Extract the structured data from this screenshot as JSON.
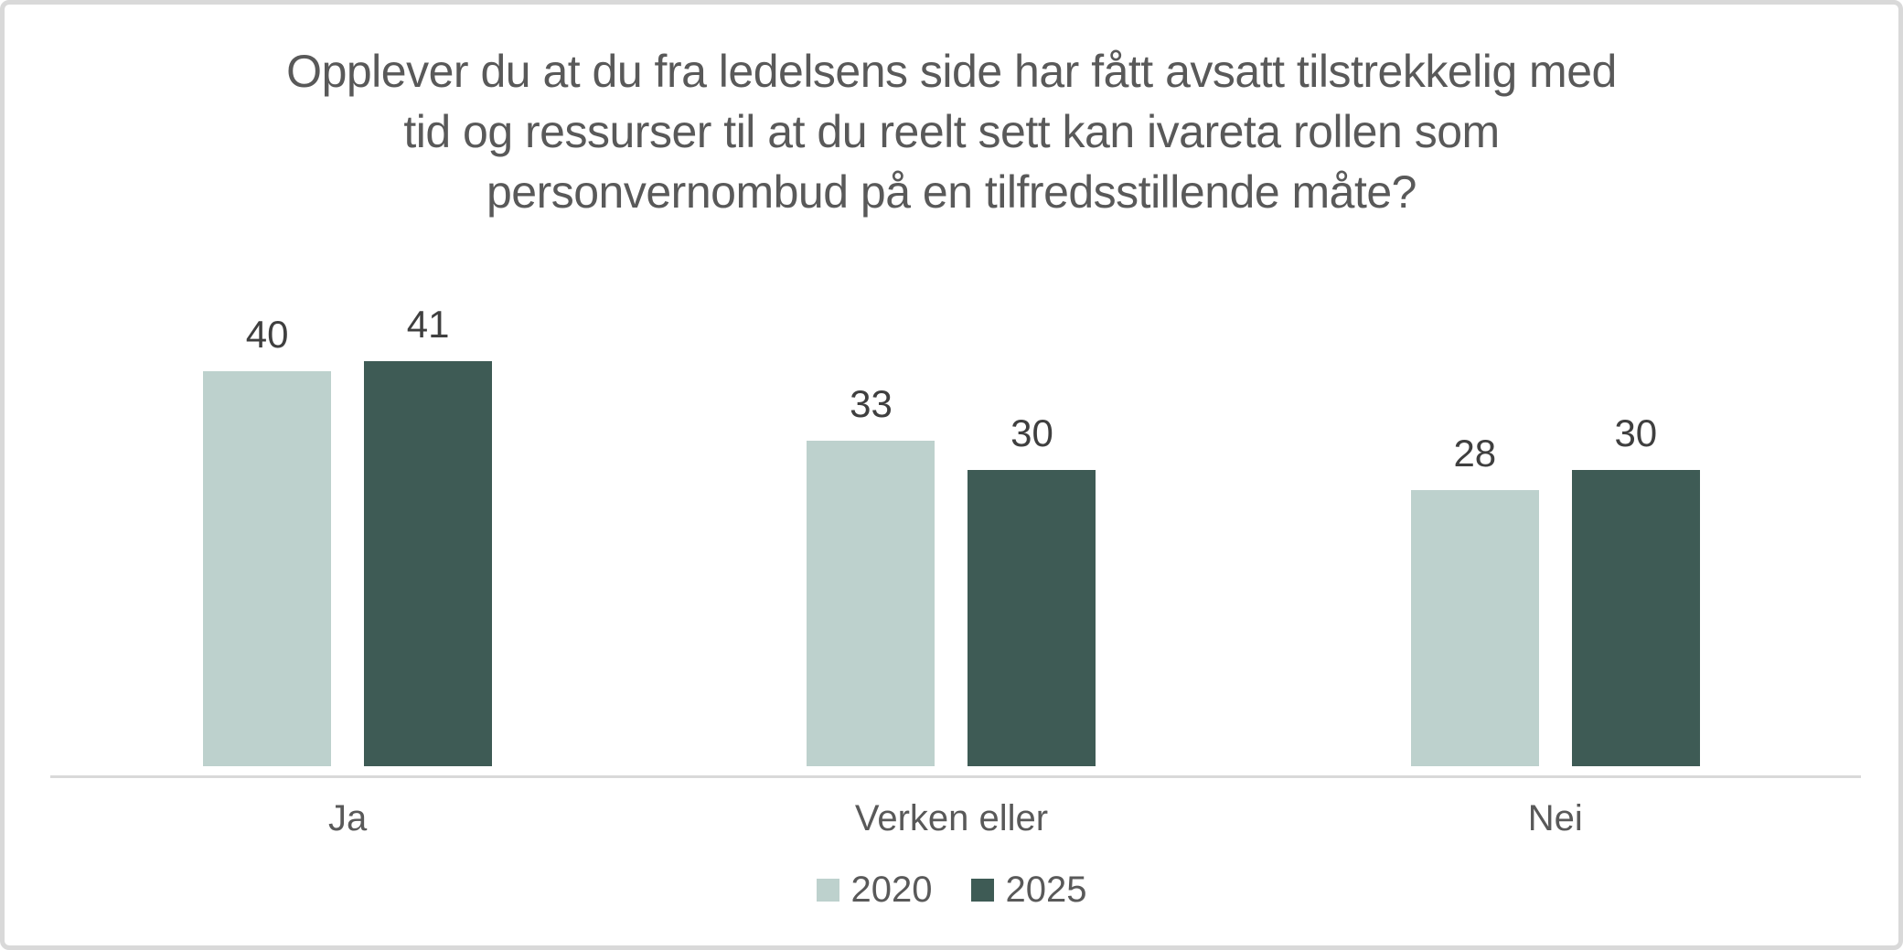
{
  "chart_data": {
    "type": "bar",
    "title": "Opplever du at du fra ledelsens side har fått avsatt tilstrekkelig med tid og ressurser til at du reelt sett kan ivareta rollen som personvernombud på en tilfredsstillende måte?",
    "title_lines": [
      "Opplever du at du fra ledelsens side har fått avsatt tilstrekkelig med",
      "tid og ressurser til at du reelt sett kan ivareta rollen som",
      "personvernombud på en tilfredsstillende måte?"
    ],
    "categories": [
      "Ja",
      "Verken eller",
      "Nei"
    ],
    "series": [
      {
        "name": "2020",
        "color": "#bdd1cd",
        "values": [
          40,
          33,
          28
        ]
      },
      {
        "name": "2025",
        "color": "#3e5b55",
        "values": [
          41,
          30,
          30
        ]
      }
    ],
    "value_labels": true,
    "ylim": [
      0,
      46
    ],
    "grid": false,
    "legend_position": "bottom",
    "xlabel": "",
    "ylabel": ""
  },
  "colors": {
    "background": "#ffffff",
    "frame_border": "#d9d9d9",
    "axis_line": "#d9d9d9",
    "title_text": "#595959",
    "value_label_text": "#3f3f3f",
    "category_label_text": "#595959",
    "legend_text": "#595959"
  }
}
